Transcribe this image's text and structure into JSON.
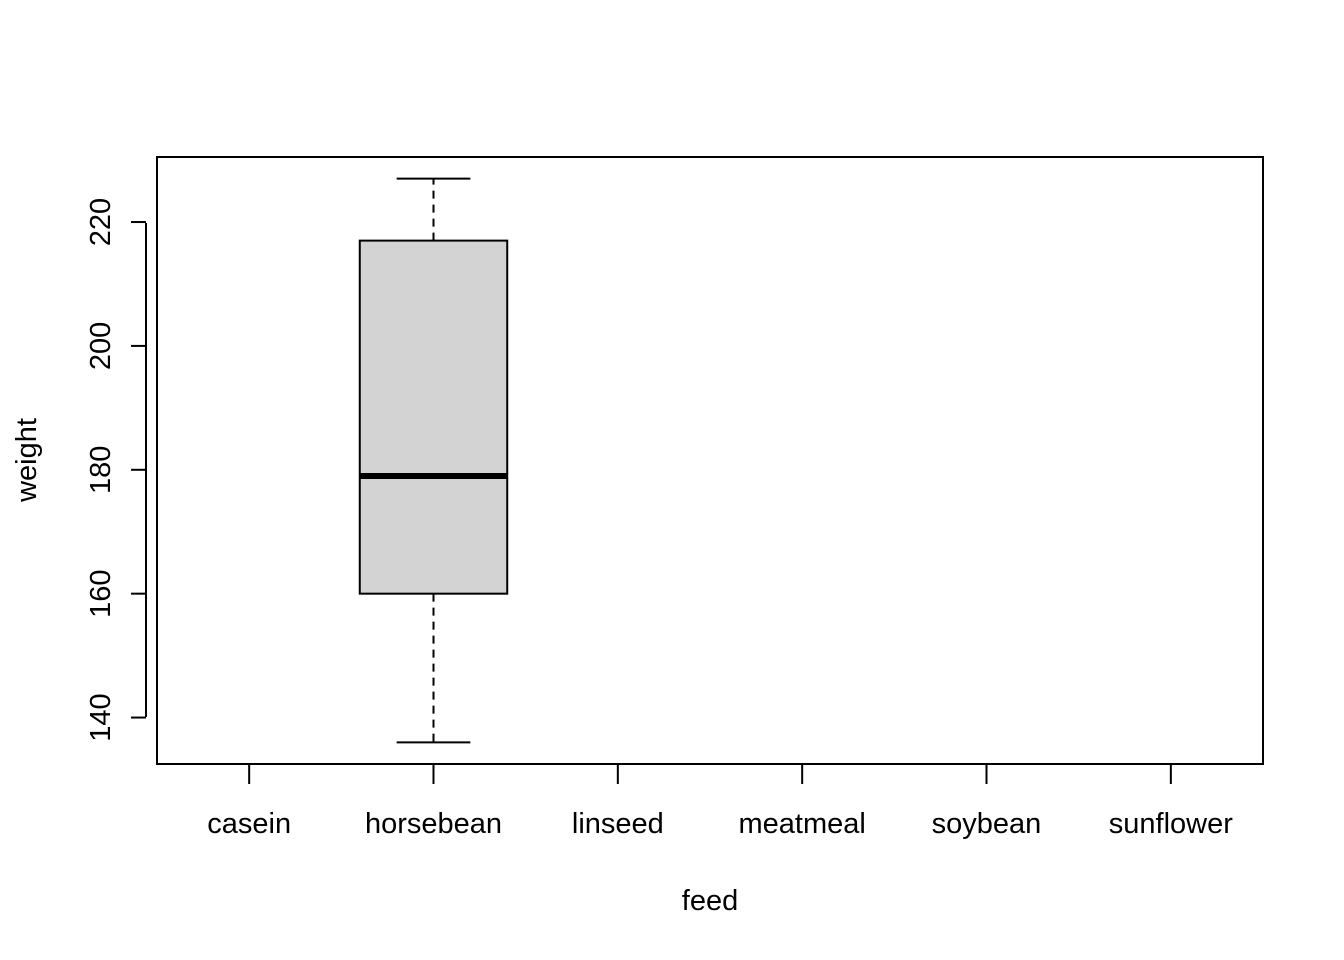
{
  "chart_data": {
    "type": "box",
    "title": "",
    "xlabel": "feed",
    "ylabel": "weight",
    "categories": [
      "casein",
      "horsebean",
      "linseed",
      "meatmeal",
      "soybean",
      "sunflower"
    ],
    "ylim": [
      132.5,
      230.5
    ],
    "y_ticks": [
      140,
      160,
      180,
      200,
      220
    ],
    "boxes": [
      {
        "category": "horsebean",
        "whisker_low": 136,
        "q1": 160,
        "median": 179,
        "q3": 217,
        "whisker_high": 227
      }
    ],
    "box_fill": "#d3d3d3",
    "grid": false,
    "legend": "none"
  }
}
